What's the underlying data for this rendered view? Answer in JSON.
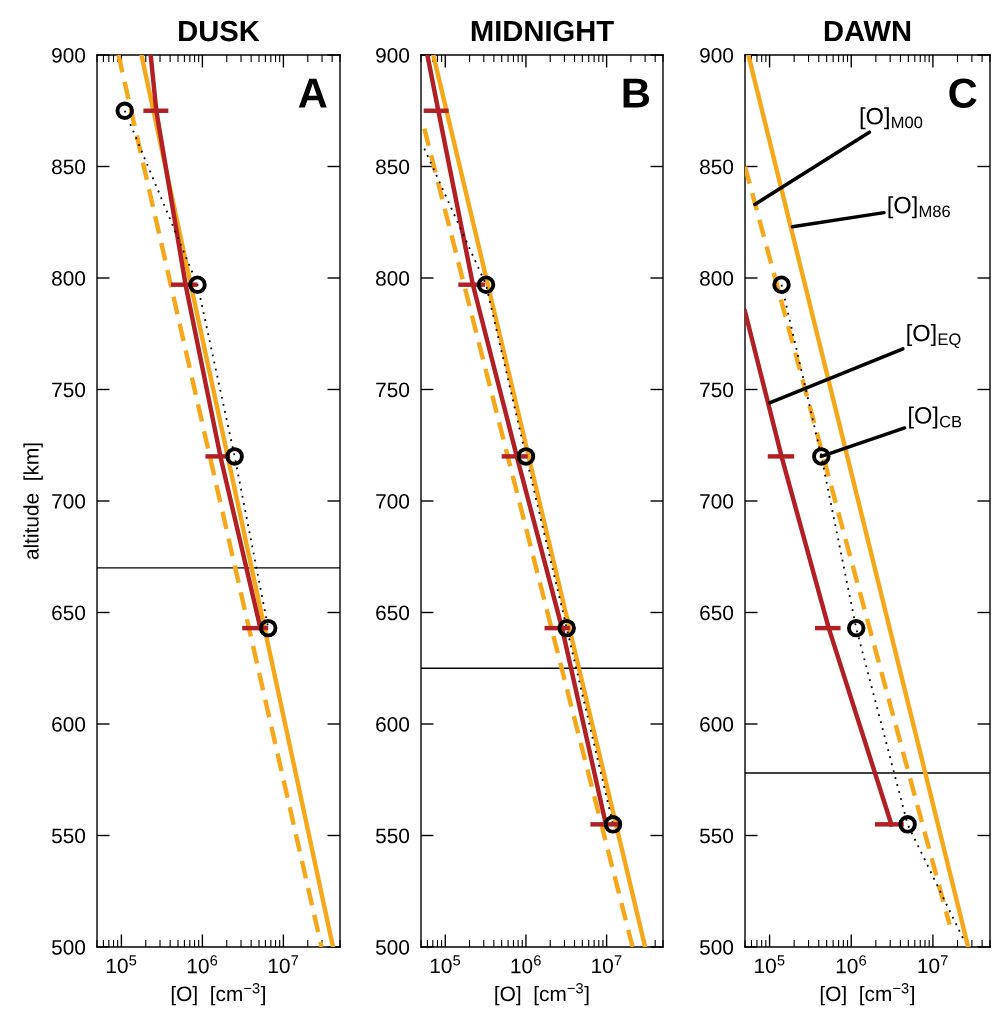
{
  "chart_data": [
    {
      "type": "line",
      "title": "DUSK",
      "xlabel": "[O]  [cm$^{−3}$]",
      "ylabel": "altitude  [km]",
      "log": "x",
      "xlim": [
        50000,
        50000000
      ],
      "ylim": [
        500,
        900
      ],
      "xticks": [
        {
          "value": 100000,
          "label": "10$^{5}$"
        },
        {
          "value": 1000000,
          "label": "10$^{6}$"
        },
        {
          "value": 10000000,
          "label": "10$^{7}$"
        }
      ],
      "yticks": [
        500,
        550,
        600,
        650,
        700,
        750,
        800,
        850,
        900
      ],
      "series": [
        {
          "color": "#f5a81c",
          "line_style": "solid",
          "x": [
            177000,
            41000000
          ],
          "values": [
            900,
            500
          ]
        },
        {
          "color": "#f5a81c",
          "line_style": "dashed",
          "x": [
            92000,
            29600000
          ],
          "values": [
            900,
            500
          ]
        },
        {
          "color": "#b22025",
          "line_style": "solid",
          "x": [
            230000,
            270000,
            620000,
            1670000,
            5200000
          ],
          "values": [
            900,
            875,
            797,
            720,
            643
          ],
          "xerrors": [
            null,
            [
              187000,
              380000
            ],
            [
              410000,
              870000
            ],
            [
              1090000,
              2200000
            ],
            [
              3100000,
              6500000
            ]
          ]
        },
        {
          "color": "#000000",
          "line_style": "dotted",
          "x": [
            110000,
            870000,
            2500000,
            6500000
          ],
          "values": [
            875,
            797,
            720,
            643
          ]
        },
        {
          "type": "scatter",
          "color": "#000000",
          "marker": "circle",
          "x": [
            110000,
            870000,
            2500000,
            6500000
          ],
          "values": [
            875,
            797,
            720,
            643
          ]
        }
      ],
      "ref_lines": [
        {
          "axis": "y",
          "value": 670,
          "color": "#000000"
        }
      ],
      "annotations": [
        "A"
      ]
    },
    {
      "type": "line",
      "title": "MIDNIGHT",
      "xlabel": "[O]  [cm$^{−3}$]",
      "log": "x",
      "xlim": [
        50000,
        50000000
      ],
      "ylim": [
        500,
        900
      ],
      "xticks": [
        {
          "value": 100000,
          "label": "10$^{5}$"
        },
        {
          "value": 1000000,
          "label": "10$^{6}$"
        },
        {
          "value": 10000000,
          "label": "10$^{7}$"
        }
      ],
      "yticks": [
        500,
        550,
        600,
        650,
        700,
        750,
        800,
        850,
        900
      ],
      "series": [
        {
          "color": "#f5a81c",
          "line_style": "solid",
          "x": [
            71000,
            30000000
          ],
          "values": [
            900,
            500
          ]
        },
        {
          "color": "#f5a81c",
          "line_style": "dashed",
          "x": [
            55000,
            21000000
          ],
          "values": [
            867,
            500
          ]
        },
        {
          "color": "#b22025",
          "line_style": "solid",
          "x": [
            60000,
            82000,
            220000,
            770000,
            2800000,
            9800000
          ],
          "values": [
            900,
            875,
            797,
            720,
            643,
            555
          ],
          "xerrors": [
            null,
            [
              54000,
              110000
            ],
            [
              145000,
              310000
            ],
            [
              500000,
              1050000
            ],
            [
              1700000,
              3500000
            ],
            [
              6300000,
              15000000
            ]
          ]
        },
        {
          "color": "#000000",
          "line_style": "dotted",
          "x": [
            55000,
            320000,
            1000000,
            3200000,
            12000000
          ],
          "values": [
            858,
            797,
            720,
            643,
            555
          ]
        },
        {
          "type": "scatter",
          "color": "#000000",
          "marker": "circle",
          "x": [
            320000,
            1000000,
            3200000,
            12000000
          ],
          "values": [
            797,
            720,
            643,
            555
          ]
        }
      ],
      "ref_lines": [
        {
          "axis": "y",
          "value": 625,
          "color": "#000000"
        }
      ],
      "annotations": [
        "B"
      ]
    },
    {
      "type": "line",
      "title": "DAWN",
      "xlabel": "[O]  [cm$^{−3}$]",
      "log": "x",
      "xlim": [
        50000,
        50000000
      ],
      "ylim": [
        500,
        900
      ],
      "xticks": [
        {
          "value": 100000,
          "label": "10$^{5}$"
        },
        {
          "value": 1000000,
          "label": "10$^{6}$"
        },
        {
          "value": 10000000,
          "label": "10$^{7}$"
        }
      ],
      "yticks": [
        500,
        550,
        600,
        650,
        700,
        750,
        800,
        850,
        900
      ],
      "series": [
        {
          "color": "#f5a81c",
          "line_style": "solid",
          "x": [
            55000,
            27000000
          ],
          "values": [
            900,
            500
          ]
        },
        {
          "color": "#f5a81c",
          "line_style": "dashed",
          "x": [
            50000,
            16000000
          ],
          "values": [
            850,
            510
          ]
        },
        {
          "color": "#b22025",
          "line_style": "solid",
          "x": [
            50000,
            140000,
            530000,
            3100000
          ],
          "values": [
            785,
            720,
            643,
            555
          ],
          "xerrors": [
            null,
            [
              95000,
              200000
            ],
            [
              360000,
              740000
            ],
            [
              1950000,
              4400000
            ]
          ]
        },
        {
          "color": "#000000",
          "line_style": "dotted",
          "x": [
            140000,
            430000,
            1150000,
            4900000,
            24000000
          ],
          "values": [
            797,
            720,
            643,
            555,
            503
          ]
        },
        {
          "type": "scatter",
          "color": "#000000",
          "marker": "circle",
          "x": [
            140000,
            430000,
            1150000,
            4900000
          ],
          "values": [
            797,
            720,
            643,
            555
          ]
        }
      ],
      "ref_lines": [
        {
          "axis": "y",
          "value": 578,
          "color": "#000000"
        }
      ],
      "annotations": [
        "C",
        {
          "text": "[O]$_{M00}$",
          "x": 66000,
          "y": 833
        },
        {
          "text": "[O]$_{M86}$",
          "x": 190000,
          "y": 823
        },
        {
          "text": "[O]$_{EQ}$",
          "x": 100000,
          "y": 744
        },
        {
          "text": "[O]$_{CB}$",
          "x": 430000,
          "y": 720
        }
      ]
    }
  ]
}
